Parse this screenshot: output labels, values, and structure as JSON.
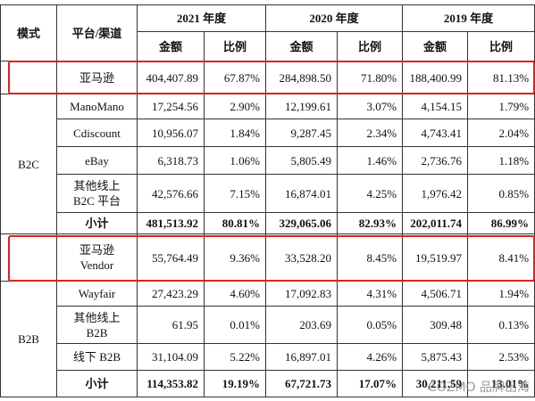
{
  "table": {
    "header": {
      "mode": "模式",
      "channel": "平台/渠道",
      "years": [
        "2021 年度",
        "2020 年度",
        "2019 年度"
      ],
      "subheaders": [
        "金额",
        "比例",
        "金额",
        "比例",
        "金额",
        "比例"
      ]
    },
    "modes": [
      "B2C",
      "B2B"
    ],
    "rows": [
      {
        "channel": "亚马逊",
        "cells": [
          "404,407.89",
          "67.87%",
          "284,898.50",
          "71.80%",
          "188,400.99",
          "81.13%"
        ]
      },
      {
        "channel": "ManoMano",
        "cells": [
          "17,254.56",
          "2.90%",
          "12,199.61",
          "3.07%",
          "4,154.15",
          "1.79%"
        ]
      },
      {
        "channel": "Cdiscount",
        "cells": [
          "10,956.07",
          "1.84%",
          "9,287.45",
          "2.34%",
          "4,743.41",
          "2.04%"
        ]
      },
      {
        "channel": "eBay",
        "cells": [
          "6,318.73",
          "1.06%",
          "5,805.49",
          "1.46%",
          "2,736.76",
          "1.18%"
        ]
      },
      {
        "channel": "其他线上\nB2C 平台",
        "cells": [
          "42,576.66",
          "7.15%",
          "16,874.01",
          "4.25%",
          "1,976.42",
          "0.85%"
        ]
      },
      {
        "channel": "小计",
        "cells": [
          "481,513.92",
          "80.81%",
          "329,065.06",
          "82.93%",
          "202,011.74",
          "86.99%"
        ]
      },
      {
        "channel": "亚马逊\nVendor",
        "cells": [
          "55,764.49",
          "9.36%",
          "33,528.20",
          "8.45%",
          "19,519.97",
          "8.41%"
        ]
      },
      {
        "channel": "Wayfair",
        "cells": [
          "27,423.29",
          "4.60%",
          "17,092.83",
          "4.31%",
          "4,506.71",
          "1.94%"
        ]
      },
      {
        "channel": "其他线上\nB2B",
        "cells": [
          "61.95",
          "0.01%",
          "203.69",
          "0.05%",
          "309.48",
          "0.13%"
        ]
      },
      {
        "channel": "线下 B2B",
        "cells": [
          "31,104.09",
          "5.22%",
          "16,897.01",
          "4.26%",
          "5,875.43",
          "2.53%"
        ]
      },
      {
        "channel": "小计",
        "cells": [
          "114,353.82",
          "19.19%",
          "67,721.73",
          "17.07%",
          "30,211.59",
          "13.01%"
        ]
      }
    ],
    "watermark": "COZMO 品牌出海"
  }
}
